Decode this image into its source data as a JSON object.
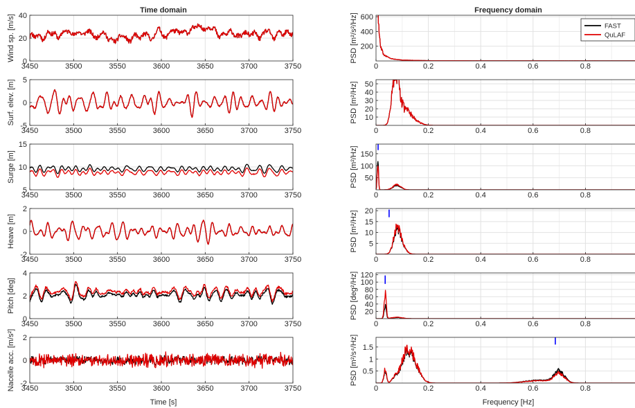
{
  "figure": {
    "left_title": "Time domain",
    "right_title": "Frequency domain",
    "time_xlabel": "Time [s]",
    "freq_xlabel": "Frequency [Hz]",
    "colors": {
      "fast": "#000000",
      "qulaf": "#e00000",
      "marker": "#0000ff",
      "grid": "#e2e2e2"
    }
  },
  "chart_data": [
    {
      "type": "line",
      "panel": "time",
      "ylabel": "Wind sp. [m/s]",
      "xlim": [
        3450,
        3750
      ],
      "ylim": [
        0,
        40
      ],
      "xticks": [
        "3450",
        "3500",
        "3550",
        "3600",
        "3650",
        "3700",
        "3750"
      ],
      "yticks": [
        "0",
        "20",
        "40"
      ],
      "series": [
        {
          "name": "FAST",
          "mean": 22,
          "amp": 4.5,
          "noise": 2.0,
          "seed": 11,
          "trend": [
            [
              3450,
              21
            ],
            [
              3500,
              25
            ],
            [
              3530,
              23
            ],
            [
              3545,
              19
            ],
            [
              3575,
              21
            ],
            [
              3600,
              24
            ],
            [
              3630,
              26
            ],
            [
              3648,
              31
            ],
            [
              3665,
              24
            ],
            [
              3700,
              23
            ],
            [
              3750,
              24
            ]
          ]
        },
        {
          "name": "QuLAF",
          "follows": "FAST",
          "offset": 0,
          "noise": 0
        }
      ]
    },
    {
      "type": "line",
      "panel": "time",
      "ylabel": "Surf. elev. [m]",
      "xlim": [
        3450,
        3750
      ],
      "ylim": [
        -5,
        5
      ],
      "xticks": [
        "3450",
        "3500",
        "3550",
        "3600",
        "3650",
        "3700",
        "3750"
      ],
      "yticks": [
        "-5",
        "0",
        "5"
      ],
      "series": [
        {
          "name": "FAST",
          "mean": 0,
          "amp": 2.8,
          "noise": 0.15,
          "seed": 23,
          "trend": []
        },
        {
          "name": "QuLAF",
          "follows": "FAST",
          "offset": 0,
          "noise": 0.05
        }
      ]
    },
    {
      "type": "line",
      "panel": "time",
      "ylabel": "Surge [m]",
      "xlim": [
        3450,
        3750
      ],
      "ylim": [
        5,
        15
      ],
      "xticks": [
        "3450",
        "3500",
        "3550",
        "3600",
        "3650",
        "3700",
        "3750"
      ],
      "yticks": [
        "5",
        "10",
        "15"
      ],
      "series": [
        {
          "name": "FAST",
          "mean": 9.6,
          "amp": 1.1,
          "noise": 0.05,
          "seed": 37,
          "trend": []
        },
        {
          "name": "QuLAF",
          "follows": "FAST",
          "offset": -0.8,
          "noise": 0.05
        }
      ]
    },
    {
      "type": "line",
      "panel": "time",
      "ylabel": "Heave [m]",
      "xlim": [
        3450,
        3750
      ],
      "ylim": [
        -2,
        2
      ],
      "xticks": [
        "3450",
        "3500",
        "3550",
        "3600",
        "3650",
        "3700",
        "3750"
      ],
      "yticks": [
        "-2",
        "0",
        "2"
      ],
      "series": [
        {
          "name": "FAST",
          "mean": 0,
          "amp": 1.0,
          "noise": 0.04,
          "seed": 51,
          "trend": []
        },
        {
          "name": "QuLAF",
          "follows": "FAST",
          "offset": 0,
          "noise": 0.03
        }
      ]
    },
    {
      "type": "line",
      "panel": "time",
      "ylabel": "Pitch [deg]",
      "xlim": [
        3450,
        3750
      ],
      "ylim": [
        0,
        4
      ],
      "xticks": [
        "3450",
        "3500",
        "3550",
        "3600",
        "3650",
        "3700",
        "3750"
      ],
      "yticks": [
        "0",
        "2",
        "4"
      ],
      "series": [
        {
          "name": "FAST",
          "mean": 2.1,
          "amp": 0.7,
          "noise": 0.08,
          "seed": 67,
          "trend": []
        },
        {
          "name": "QuLAF",
          "follows": "FAST",
          "offset": 0.25,
          "noise": 0.06
        }
      ]
    },
    {
      "type": "line",
      "panel": "time",
      "ylabel": "Nacelle acc. [m/s²]",
      "xlim": [
        3450,
        3750
      ],
      "ylim": [
        -2,
        2
      ],
      "xticks": [
        "3450",
        "3500",
        "3550",
        "3600",
        "3650",
        "3700",
        "3750"
      ],
      "yticks": [
        "-2",
        "0",
        "2"
      ],
      "series": [
        {
          "name": "FAST",
          "mean": 0,
          "amp": 0.15,
          "noise": 0.38,
          "seed": 83,
          "trend": []
        },
        {
          "name": "QuLAF",
          "follows": "FAST",
          "offset": 0,
          "noise": 0.3
        }
      ]
    },
    {
      "type": "line",
      "panel": "freq",
      "ylabel": "PSD [m²/s²/Hz]",
      "xlim": [
        0,
        1
      ],
      "ylim": [
        0,
        620
      ],
      "xticks": [
        "0",
        "0.2",
        "0.4",
        "0.6",
        "0.8"
      ],
      "yticks": [
        [
          "200",
          200
        ],
        [
          "400",
          400
        ],
        [
          "600",
          600
        ]
      ],
      "legend": {
        "placement": "top-right",
        "entries": [
          "FAST",
          "QuLAF"
        ]
      },
      "series": [
        {
          "name": "FAST",
          "peaks": [
            [
              0.002,
              600,
              0.006
            ]
          ],
          "tail": [
            [
              0.0,
              620
            ],
            [
              0.01,
              250
            ],
            [
              0.03,
              80
            ],
            [
              0.06,
              30
            ],
            [
              0.1,
              12
            ],
            [
              0.2,
              4
            ],
            [
              0.4,
              2
            ],
            [
              1.0,
              1
            ]
          ],
          "noise": 0.15
        },
        {
          "name": "QuLAF",
          "same_as": "FAST"
        }
      ],
      "markers": []
    },
    {
      "type": "line",
      "panel": "freq",
      "ylabel": "PSD [m²/Hz]",
      "xlim": [
        0,
        1
      ],
      "ylim": [
        0,
        55
      ],
      "xticks": [
        "0",
        "0.2",
        "0.4",
        "0.6",
        "0.8"
      ],
      "yticks": [
        [
          "10",
          10
        ],
        [
          "20",
          20
        ],
        [
          "30",
          30
        ],
        [
          "40",
          40
        ],
        [
          "50",
          50
        ]
      ],
      "series": [
        {
          "name": "FAST",
          "peaks": [
            [
              0.08,
              48,
              0.012
            ],
            [
              0.065,
              30,
              0.01
            ],
            [
              0.11,
              15,
              0.02
            ],
            [
              0.14,
              6,
              0.025
            ]
          ],
          "tail": [],
          "noise": 0.25
        },
        {
          "name": "QuLAF",
          "same_as": "FAST"
        }
      ],
      "markers": []
    },
    {
      "type": "line",
      "panel": "freq",
      "ylabel": "PSD [m²/Hz]",
      "xlim": [
        0,
        1
      ],
      "ylim": [
        0,
        190
      ],
      "xticks": [
        "0",
        "0.2",
        "0.4",
        "0.6",
        "0.8"
      ],
      "yticks": [
        [
          "50",
          50
        ],
        [
          "100",
          100
        ],
        [
          "150",
          150
        ]
      ],
      "series": [
        {
          "name": "FAST",
          "peaks": [
            [
              0.007,
              125,
              0.0025
            ],
            [
              0.08,
              18,
              0.015
            ]
          ],
          "tail": [],
          "noise": 0.15
        },
        {
          "name": "QuLAF",
          "peaks": [
            [
              0.007,
              105,
              0.0025
            ],
            [
              0.08,
              22,
              0.015
            ]
          ],
          "tail": [],
          "noise": 0.15
        }
      ],
      "markers": [
        [
          0.008,
          165,
          190
        ]
      ]
    },
    {
      "type": "line",
      "panel": "freq",
      "ylabel": "PSD [m²/Hz]",
      "xlim": [
        0,
        1
      ],
      "ylim": [
        0,
        21
      ],
      "xticks": [
        "0",
        "0.2",
        "0.4",
        "0.6",
        "0.8"
      ],
      "yticks": [
        [
          "5",
          5
        ],
        [
          "10",
          10
        ],
        [
          "15",
          15
        ],
        [
          "20",
          20
        ]
      ],
      "series": [
        {
          "name": "FAST",
          "peaks": [
            [
              0.08,
              10.5,
              0.013
            ],
            [
              0.1,
              3,
              0.015
            ]
          ],
          "tail": [],
          "noise": 0.2
        },
        {
          "name": "QuLAF",
          "peaks": [
            [
              0.08,
              11.5,
              0.013
            ],
            [
              0.1,
              3.2,
              0.015
            ]
          ],
          "tail": [],
          "noise": 0.2
        }
      ],
      "markers": [
        [
          0.05,
          17,
          20.5
        ]
      ]
    },
    {
      "type": "line",
      "panel": "freq",
      "ylabel": "PSD [deg²/Hz]",
      "xlim": [
        0,
        1
      ],
      "ylim": [
        0,
        125
      ],
      "xticks": [
        "0",
        "0.2",
        "0.4",
        "0.6",
        "0.8"
      ],
      "yticks": [
        [
          "20",
          20
        ],
        [
          "40",
          40
        ],
        [
          "60",
          60
        ],
        [
          "80",
          80
        ],
        [
          "100",
          100
        ],
        [
          "120",
          120
        ]
      ],
      "series": [
        {
          "name": "FAST",
          "peaks": [
            [
              0.035,
              34,
              0.004
            ],
            [
              0.08,
              3,
              0.02
            ]
          ],
          "tail": [],
          "noise": 0.2
        },
        {
          "name": "QuLAF",
          "peaks": [
            [
              0.035,
              68,
              0.004
            ],
            [
              0.08,
              4,
              0.02
            ]
          ],
          "tail": [],
          "noise": 0.2
        }
      ],
      "markers": [
        [
          0.035,
          95,
          118
        ]
      ]
    },
    {
      "type": "line",
      "panel": "freq",
      "ylabel": "PSD [m²/s⁴/Hz]",
      "xlim": [
        0,
        1
      ],
      "ylim": [
        0,
        1.9
      ],
      "xticks": [
        "0",
        "0.2",
        "0.4",
        "0.6",
        "0.8"
      ],
      "yticks": [
        [
          "0.5",
          0.5
        ],
        [
          "1",
          1
        ],
        [
          "1.5",
          1.5
        ]
      ],
      "series": [
        {
          "name": "FAST",
          "peaks": [
            [
              0.035,
              0.5,
              0.005
            ],
            [
              0.075,
              0.25,
              0.012
            ],
            [
              0.135,
              1.05,
              0.025
            ],
            [
              0.11,
              0.55,
              0.015
            ],
            [
              0.7,
              0.48,
              0.02
            ],
            [
              0.62,
              0.12,
              0.05
            ]
          ],
          "tail": [],
          "noise": 0.2
        },
        {
          "name": "QuLAF",
          "peaks": [
            [
              0.035,
              0.6,
              0.005
            ],
            [
              0.075,
              0.28,
              0.012
            ],
            [
              0.135,
              1.1,
              0.025
            ],
            [
              0.11,
              0.6,
              0.015
            ],
            [
              0.7,
              0.38,
              0.02
            ],
            [
              0.62,
              0.1,
              0.05
            ]
          ],
          "tail": [],
          "noise": 0.2
        }
      ],
      "markers": [
        [
          0.685,
          1.6,
          1.9
        ]
      ]
    }
  ]
}
